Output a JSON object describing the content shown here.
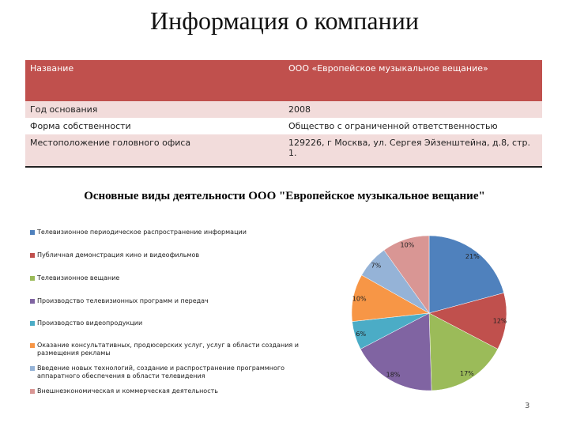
{
  "title": "Информация о компании",
  "table": {
    "header": [
      "Название",
      "ООО «Европейское музыкальное вещание»"
    ],
    "rows": [
      [
        "Год основания",
        "2008"
      ],
      [
        "Форма собственности",
        "Общество с ограниченной ответственностью"
      ],
      [
        "Местоположение головного офиса",
        "129226, г Москва, ул. Сергея Эйзенштейна, д.8, стр. 1."
      ]
    ]
  },
  "chart_data": {
    "type": "pie",
    "title": "Основные виды деятельности ООО \"Европейское музыкальное вещание\"",
    "categories": [
      "Телевизионное периодическое распространение информации",
      "Публичная демонстрация кино и видеофильмов",
      "Телевизионное вещание",
      "Производство телевизионных программ и передач",
      "Производство видеопродукции",
      "Оказание консультативных, продюсерских услуг, услуг в области создания и размещения рекламы",
      "Введение новых технологий, создание и распространение программного аппаратного обеспечения в области телевидения",
      "Внешнеэкономическая и коммерческая деятельность"
    ],
    "values": [
      21,
      12,
      17,
      18,
      6,
      10,
      7,
      10
    ],
    "value_labels": [
      "21%",
      "12%",
      "17%",
      "18%",
      "6%",
      "10%",
      "7%",
      "10%"
    ],
    "colors": [
      "#4f81bd",
      "#c0504d",
      "#9bbb59",
      "#8064a2",
      "#4bacc6",
      "#f79646",
      "#95b3d7",
      "#d99694"
    ]
  },
  "page_number": "3"
}
